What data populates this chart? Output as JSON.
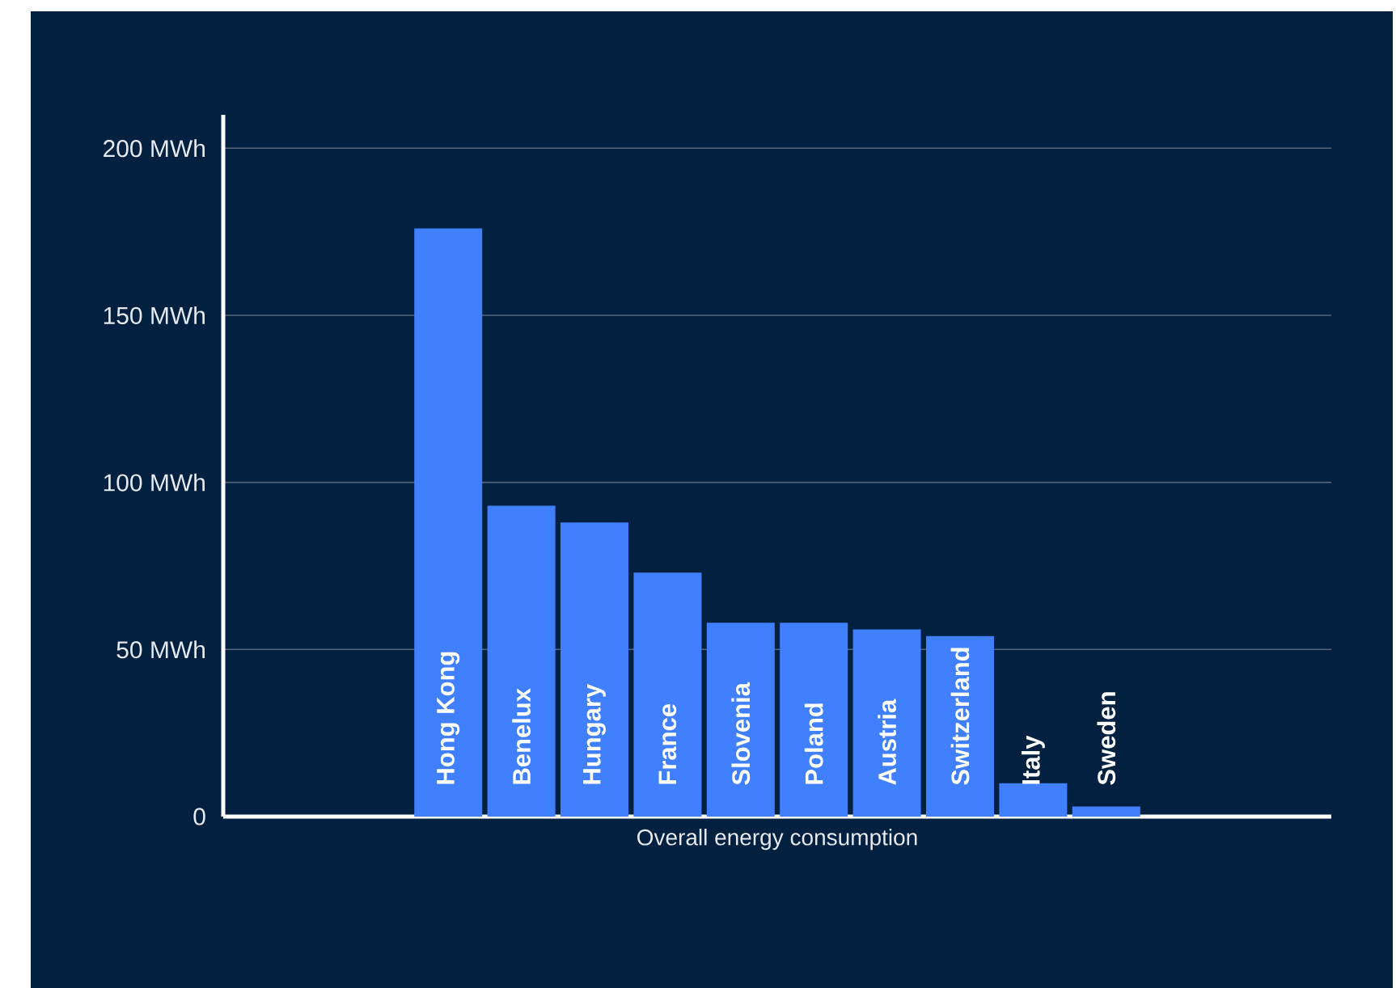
{
  "chart_data": {
    "type": "bar",
    "categories": [
      "Overall energy consumption"
    ],
    "series": [
      {
        "name": "Hong Kong",
        "color": "#4080ff",
        "values": [
          176
        ]
      },
      {
        "name": "Benelux",
        "color": "#4080ff",
        "values": [
          93
        ]
      },
      {
        "name": "Hungary",
        "color": "#4080ff",
        "values": [
          88
        ]
      },
      {
        "name": "France",
        "color": "#4080ff",
        "values": [
          73
        ]
      },
      {
        "name": "Slovenia",
        "color": "#4080ff",
        "values": [
          58
        ]
      },
      {
        "name": "Poland",
        "color": "#4080ff",
        "values": [
          58
        ]
      },
      {
        "name": "Austria",
        "color": "#4080ff",
        "values": [
          56
        ]
      },
      {
        "name": "Switzerland",
        "color": "#4080ff",
        "values": [
          54
        ]
      },
      {
        "name": "Italy",
        "color": "#4080ff",
        "values": [
          10
        ]
      },
      {
        "name": "Sweden",
        "color": "#4080ff",
        "values": [
          3
        ]
      }
    ],
    "ylim": [
      0,
      210
    ],
    "yticks": [
      0,
      {
        "value": 50,
        "label": "50 MWh"
      },
      {
        "value": 100,
        "label": "100 MWh"
      },
      {
        "value": 150,
        "label": "150 MWh"
      },
      {
        "value": 200,
        "label": "200 MWh"
      }
    ],
    "grid": "y"
  }
}
